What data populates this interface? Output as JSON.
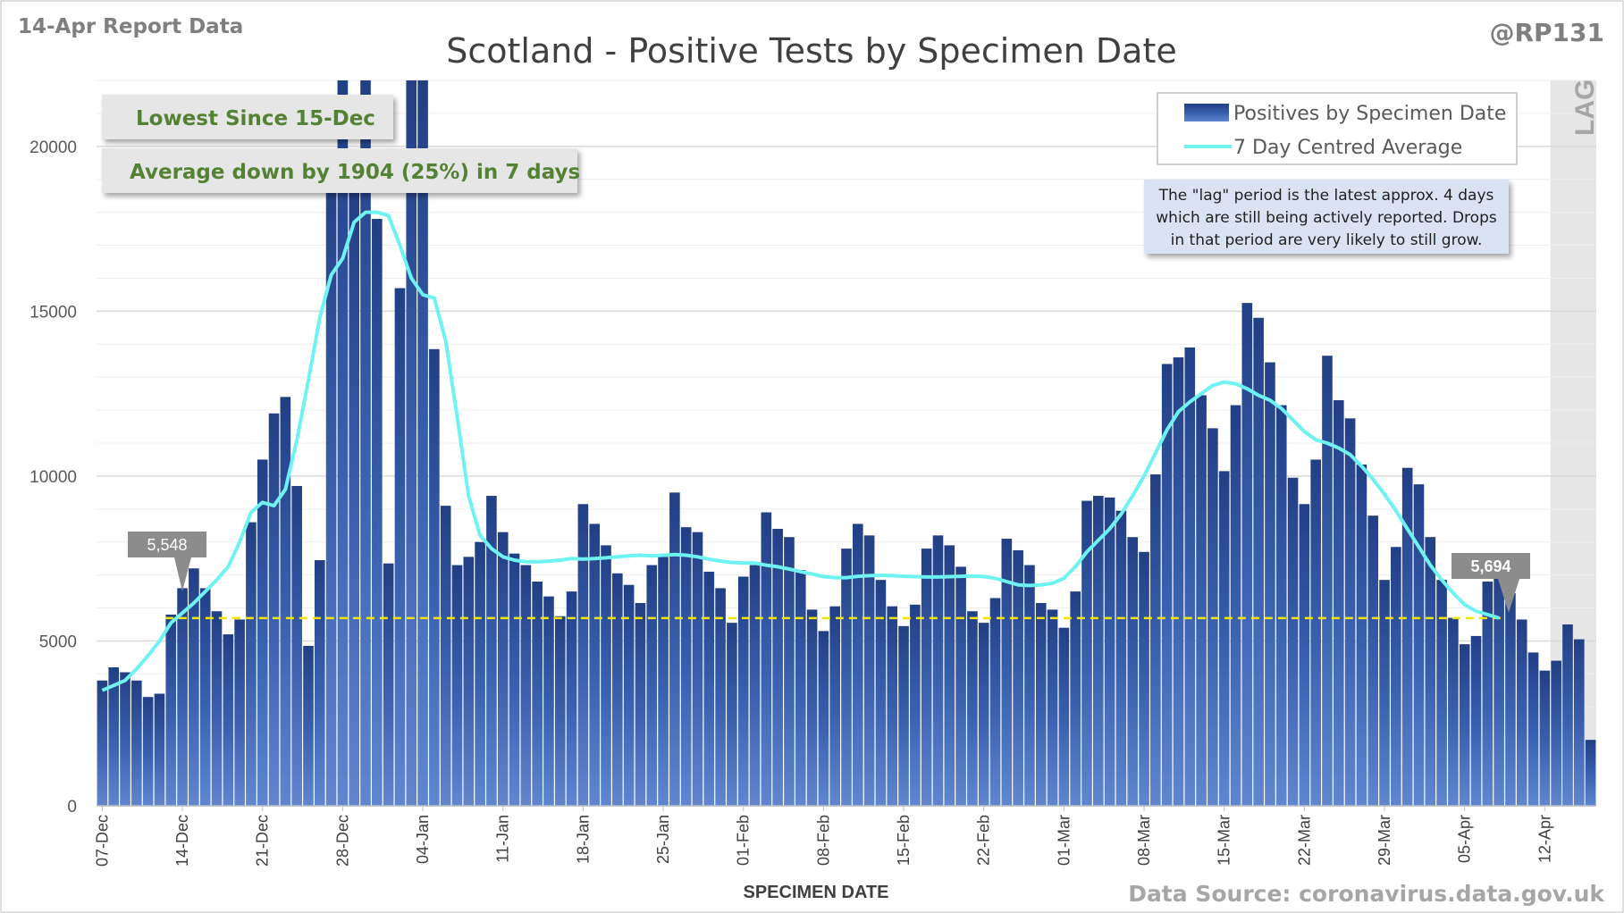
{
  "header": {
    "report": "14-Apr Report Data",
    "title": "Scotland - Positive Tests by Specimen Date",
    "handle": "@RP131",
    "source": "Data Source: coronavirus.data.gov.uk"
  },
  "callouts": {
    "lowest": "Lowest Since 15-Dec",
    "average": "Average down by 1904 (25%) in 7 days",
    "lag_label": "LAG",
    "lag_note": [
      "The \"lag\" period is the latest approx. 4 days",
      "which are still being actively reported. Drops",
      "in that period are very likely to still grow."
    ],
    "left_value": "5,548",
    "right_value": "5,694"
  },
  "colors": {
    "bar": "#2f4f93",
    "line": "#6ef2f2",
    "reference": "#f2e600",
    "callout_text": "#548235",
    "lag_shade": "#e6e6e6"
  },
  "chart_data": {
    "type": "bar",
    "xlabel": "SPECIMEN DATE",
    "ylabel": "",
    "ylim": [
      0,
      22000
    ],
    "yticks": [
      0,
      5000,
      10000,
      15000,
      20000
    ],
    "ytick_labels": [
      "0",
      "5000",
      "10000",
      "15000",
      "20000"
    ],
    "grid": true,
    "legend_position": "top-right",
    "x_start": "07-Dec",
    "x_end": "13-Apr",
    "xtick_labels": [
      "07-Dec",
      "14-Dec",
      "21-Dec",
      "28-Dec",
      "04-Jan",
      "11-Jan",
      "18-Jan",
      "25-Jan",
      "01-Feb",
      "08-Feb",
      "15-Feb",
      "22-Feb",
      "01-Mar",
      "08-Mar",
      "15-Mar",
      "22-Mar",
      "29-Mar",
      "05-Apr",
      "12-Apr"
    ],
    "reference_value": 5694,
    "lag_days": 4,
    "series": [
      {
        "name": "Positives by Specimen Date",
        "kind": "bar",
        "values": [
          3800,
          4200,
          4050,
          3800,
          3300,
          3400,
          5800,
          6600,
          7200,
          6600,
          5900,
          5200,
          5650,
          8600,
          10500,
          11900,
          12400,
          9700,
          4850,
          7450,
          19700,
          22000,
          18600,
          22000,
          17800,
          7350,
          15700,
          22000,
          22000,
          13850,
          9100,
          7300,
          7550,
          8000,
          9400,
          8300,
          7650,
          7300,
          6800,
          6350,
          5750,
          6500,
          9150,
          8550,
          7900,
          7050,
          6700,
          6150,
          7300,
          7550,
          9500,
          8450,
          8300,
          7100,
          6600,
          5550,
          6950,
          7300,
          8900,
          8400,
          8150,
          7150,
          5950,
          5300,
          6050,
          7800,
          8550,
          8200,
          6850,
          6050,
          5450,
          6100,
          7800,
          8200,
          7900,
          7250,
          5900,
          5550,
          6300,
          8100,
          7750,
          7300,
          6150,
          5950,
          5400,
          6500,
          9250,
          9400,
          9350,
          8950,
          8150,
          7700,
          10050,
          13400,
          13600,
          13900,
          12450,
          11450,
          10150,
          12150,
          15250,
          14800,
          13450,
          12150,
          9950,
          9150,
          10500,
          13650,
          12300,
          11750,
          10350,
          8800,
          6850,
          7850,
          10250,
          9750,
          8150,
          6850,
          5700,
          4900,
          5150,
          6800,
          7100,
          6450,
          5650,
          4650,
          4100,
          4400,
          5500,
          5050,
          2000
        ]
      },
      {
        "name": "7 Day Centred Average",
        "kind": "line",
        "values": [
          3500,
          3650,
          3800,
          4150,
          4550,
          5000,
          5548,
          5850,
          6150,
          6500,
          6850,
          7250,
          8000,
          8900,
          9200,
          9100,
          9600,
          11100,
          12900,
          14800,
          16100,
          16600,
          17700,
          18000,
          18000,
          17900,
          17000,
          16000,
          15500,
          15400,
          14100,
          11800,
          9400,
          8200,
          7800,
          7550,
          7450,
          7400,
          7400,
          7420,
          7450,
          7500,
          7480,
          7500,
          7520,
          7550,
          7580,
          7600,
          7580,
          7600,
          7620,
          7600,
          7550,
          7480,
          7420,
          7380,
          7360,
          7360,
          7300,
          7250,
          7180,
          7100,
          7030,
          6950,
          6920,
          6920,
          6960,
          6980,
          6990,
          6980,
          6960,
          6950,
          6940,
          6940,
          6950,
          6960,
          6970,
          6950,
          6900,
          6800,
          6700,
          6680,
          6700,
          6750,
          6900,
          7250,
          7700,
          8050,
          8400,
          8850,
          9400,
          10000,
          10700,
          11400,
          11950,
          12250,
          12500,
          12750,
          12850,
          12800,
          12650,
          12450,
          12300,
          12050,
          11700,
          11350,
          11100,
          11000,
          10850,
          10650,
          10300,
          9900,
          9450,
          8950,
          8400,
          7850,
          7300,
          6850,
          6450,
          6100,
          5900,
          5800,
          5694
        ]
      }
    ]
  }
}
